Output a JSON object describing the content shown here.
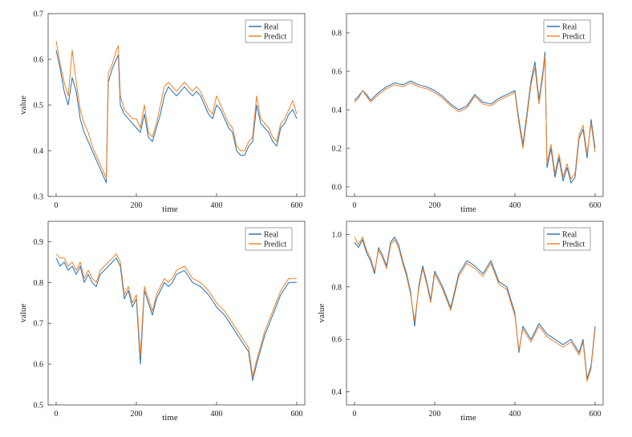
{
  "chart_data": [
    {
      "type": "line",
      "title": "",
      "xlabel": "time",
      "ylabel": "value",
      "xlim": [
        -20,
        620
      ],
      "ylim": [
        0.3,
        0.7
      ],
      "xticks": [
        0,
        200,
        400,
        600
      ],
      "yticks": [
        0.3,
        0.4,
        0.5,
        0.6,
        0.7
      ],
      "ytick_labels": [
        "0.3",
        "0.4",
        "0.5",
        "0.6",
        "0.7"
      ],
      "grid": false,
      "legend": "top-right",
      "series": [
        {
          "name": "Real",
          "color": "#1f6fb2",
          "x": [
            0,
            10,
            20,
            30,
            40,
            50,
            60,
            70,
            80,
            90,
            100,
            110,
            120,
            125,
            130,
            140,
            150,
            155,
            160,
            170,
            180,
            190,
            200,
            210,
            220,
            230,
            240,
            250,
            260,
            270,
            280,
            290,
            300,
            310,
            320,
            330,
            340,
            350,
            360,
            370,
            380,
            390,
            400,
            410,
            420,
            430,
            440,
            450,
            460,
            470,
            480,
            490,
            500,
            510,
            520,
            530,
            540,
            550,
            560,
            570,
            580,
            590,
            600
          ],
          "values": [
            0.62,
            0.58,
            0.53,
            0.5,
            0.56,
            0.53,
            0.47,
            0.44,
            0.42,
            0.4,
            0.38,
            0.36,
            0.34,
            0.33,
            0.55,
            0.58,
            0.6,
            0.61,
            0.5,
            0.48,
            0.47,
            0.46,
            0.45,
            0.44,
            0.48,
            0.43,
            0.42,
            0.45,
            0.48,
            0.52,
            0.54,
            0.53,
            0.52,
            0.53,
            0.54,
            0.53,
            0.52,
            0.53,
            0.52,
            0.5,
            0.48,
            0.47,
            0.5,
            0.49,
            0.47,
            0.45,
            0.44,
            0.4,
            0.39,
            0.39,
            0.41,
            0.42,
            0.5,
            0.46,
            0.45,
            0.44,
            0.42,
            0.41,
            0.45,
            0.46,
            0.48,
            0.49,
            0.47
          ]
        },
        {
          "name": "Predict",
          "color": "#f07f22",
          "x": [
            0,
            10,
            20,
            30,
            40,
            50,
            60,
            70,
            80,
            90,
            100,
            110,
            120,
            125,
            130,
            140,
            150,
            155,
            160,
            170,
            180,
            190,
            200,
            210,
            220,
            230,
            240,
            250,
            260,
            270,
            280,
            290,
            300,
            310,
            320,
            330,
            340,
            350,
            360,
            370,
            380,
            390,
            400,
            410,
            420,
            430,
            440,
            450,
            460,
            470,
            480,
            490,
            500,
            510,
            520,
            530,
            540,
            550,
            560,
            570,
            580,
            590,
            600
          ],
          "values": [
            0.64,
            0.59,
            0.55,
            0.52,
            0.62,
            0.55,
            0.49,
            0.46,
            0.44,
            0.41,
            0.39,
            0.37,
            0.35,
            0.34,
            0.57,
            0.59,
            0.62,
            0.63,
            0.52,
            0.49,
            0.48,
            0.47,
            0.47,
            0.45,
            0.5,
            0.44,
            0.43,
            0.46,
            0.5,
            0.54,
            0.55,
            0.54,
            0.53,
            0.54,
            0.55,
            0.54,
            0.53,
            0.54,
            0.53,
            0.51,
            0.49,
            0.48,
            0.52,
            0.5,
            0.48,
            0.46,
            0.45,
            0.41,
            0.4,
            0.4,
            0.42,
            0.43,
            0.52,
            0.47,
            0.46,
            0.45,
            0.43,
            0.42,
            0.46,
            0.47,
            0.49,
            0.51,
            0.48
          ]
        }
      ]
    },
    {
      "type": "line",
      "title": "",
      "xlabel": "time",
      "ylabel": "",
      "xlim": [
        -20,
        620
      ],
      "ylim": [
        -0.05,
        0.9
      ],
      "xticks": [
        0,
        200,
        400,
        600
      ],
      "yticks": [
        0,
        0.2,
        0.4,
        0.6,
        0.8
      ],
      "ytick_labels": [
        "0.0",
        "0.2",
        "0.4",
        "0.6",
        "0.8"
      ],
      "grid": false,
      "legend": "top-right",
      "series": [
        {
          "name": "Real",
          "color": "#1f6fb2",
          "x": [
            0,
            10,
            20,
            30,
            40,
            50,
            60,
            80,
            100,
            120,
            140,
            160,
            180,
            200,
            220,
            240,
            260,
            280,
            300,
            320,
            340,
            360,
            380,
            400,
            410,
            420,
            430,
            440,
            450,
            460,
            470,
            475,
            480,
            490,
            500,
            510,
            520,
            530,
            540,
            550,
            560,
            570,
            580,
            590,
            600
          ],
          "values": [
            0.45,
            0.47,
            0.5,
            0.48,
            0.45,
            0.47,
            0.49,
            0.52,
            0.54,
            0.53,
            0.55,
            0.53,
            0.52,
            0.5,
            0.47,
            0.43,
            0.4,
            0.42,
            0.48,
            0.44,
            0.43,
            0.46,
            0.48,
            0.5,
            0.35,
            0.22,
            0.38,
            0.55,
            0.65,
            0.45,
            0.6,
            0.7,
            0.1,
            0.2,
            0.05,
            0.15,
            0.03,
            0.1,
            0.02,
            0.05,
            0.25,
            0.3,
            0.15,
            0.35,
            0.2
          ]
        },
        {
          "name": "Predict",
          "color": "#f07f22",
          "x": [
            0,
            10,
            20,
            30,
            40,
            50,
            60,
            80,
            100,
            120,
            140,
            160,
            180,
            200,
            220,
            240,
            260,
            280,
            300,
            320,
            340,
            360,
            380,
            400,
            410,
            420,
            430,
            440,
            450,
            460,
            470,
            475,
            480,
            490,
            500,
            510,
            520,
            530,
            540,
            550,
            560,
            570,
            580,
            590,
            600
          ],
          "values": [
            0.44,
            0.46,
            0.5,
            0.47,
            0.44,
            0.46,
            0.48,
            0.51,
            0.53,
            0.52,
            0.54,
            0.52,
            0.51,
            0.49,
            0.46,
            0.42,
            0.39,
            0.41,
            0.47,
            0.43,
            0.42,
            0.45,
            0.47,
            0.49,
            0.33,
            0.2,
            0.36,
            0.53,
            0.62,
            0.43,
            0.58,
            0.68,
            0.12,
            0.22,
            0.07,
            0.17,
            0.05,
            0.12,
            0.04,
            0.07,
            0.27,
            0.32,
            0.17,
            0.33,
            0.18
          ]
        }
      ]
    },
    {
      "type": "line",
      "title": "",
      "xlabel": "time",
      "ylabel": "value",
      "xlim": [
        -20,
        620
      ],
      "ylim": [
        0.5,
        0.95
      ],
      "xticks": [
        0,
        200,
        400,
        600
      ],
      "yticks": [
        0.5,
        0.6,
        0.7,
        0.8,
        0.9
      ],
      "ytick_labels": [
        "0.5",
        "0.6",
        "0.7",
        "0.8",
        "0.9"
      ],
      "grid": false,
      "legend": "top-right",
      "series": [
        {
          "name": "Real",
          "color": "#1f6fb2",
          "x": [
            0,
            10,
            20,
            30,
            40,
            50,
            60,
            70,
            80,
            90,
            100,
            110,
            120,
            130,
            140,
            150,
            160,
            170,
            180,
            190,
            200,
            210,
            220,
            230,
            240,
            250,
            260,
            270,
            280,
            290,
            300,
            320,
            340,
            360,
            380,
            400,
            420,
            440,
            460,
            480,
            490,
            500,
            520,
            540,
            560,
            580,
            600
          ],
          "values": [
            0.86,
            0.84,
            0.85,
            0.83,
            0.84,
            0.82,
            0.84,
            0.8,
            0.82,
            0.8,
            0.79,
            0.82,
            0.83,
            0.84,
            0.85,
            0.86,
            0.84,
            0.76,
            0.78,
            0.74,
            0.76,
            0.6,
            0.78,
            0.75,
            0.72,
            0.76,
            0.78,
            0.8,
            0.79,
            0.8,
            0.82,
            0.83,
            0.8,
            0.79,
            0.77,
            0.74,
            0.72,
            0.69,
            0.66,
            0.63,
            0.56,
            0.6,
            0.67,
            0.72,
            0.77,
            0.8,
            0.8
          ]
        },
        {
          "name": "Predict",
          "color": "#f07f22",
          "x": [
            0,
            10,
            20,
            30,
            40,
            50,
            60,
            70,
            80,
            90,
            100,
            110,
            120,
            130,
            140,
            150,
            160,
            170,
            180,
            190,
            200,
            210,
            220,
            230,
            240,
            250,
            260,
            270,
            280,
            290,
            300,
            320,
            340,
            360,
            380,
            400,
            420,
            440,
            460,
            480,
            490,
            500,
            520,
            540,
            560,
            580,
            600
          ],
          "values": [
            0.87,
            0.86,
            0.86,
            0.84,
            0.85,
            0.83,
            0.85,
            0.81,
            0.83,
            0.81,
            0.8,
            0.83,
            0.84,
            0.85,
            0.86,
            0.87,
            0.85,
            0.77,
            0.79,
            0.75,
            0.77,
            0.62,
            0.79,
            0.76,
            0.73,
            0.77,
            0.79,
            0.81,
            0.8,
            0.81,
            0.83,
            0.84,
            0.81,
            0.8,
            0.78,
            0.75,
            0.73,
            0.7,
            0.67,
            0.64,
            0.57,
            0.61,
            0.68,
            0.73,
            0.78,
            0.81,
            0.81
          ]
        }
      ]
    },
    {
      "type": "line",
      "title": "",
      "xlabel": "time",
      "ylabel": "value",
      "xlim": [
        -20,
        620
      ],
      "ylim": [
        0.35,
        1.05
      ],
      "xticks": [
        0,
        200,
        400,
        600
      ],
      "yticks": [
        0.4,
        0.6,
        0.8,
        1.0
      ],
      "ytick_labels": [
        "0.4",
        "0.6",
        "0.8",
        "1.0"
      ],
      "grid": false,
      "legend": "top-right",
      "series": [
        {
          "name": "Real",
          "color": "#1f6fb2",
          "x": [
            0,
            10,
            20,
            30,
            40,
            50,
            60,
            70,
            80,
            90,
            100,
            110,
            120,
            130,
            140,
            150,
            160,
            170,
            180,
            190,
            200,
            220,
            240,
            260,
            280,
            300,
            320,
            340,
            360,
            380,
            400,
            410,
            420,
            440,
            460,
            480,
            500,
            520,
            540,
            560,
            570,
            580,
            590,
            600
          ],
          "values": [
            0.97,
            0.95,
            0.98,
            0.93,
            0.9,
            0.85,
            0.95,
            0.92,
            0.88,
            0.97,
            0.99,
            0.96,
            0.9,
            0.85,
            0.78,
            0.65,
            0.8,
            0.88,
            0.82,
            0.75,
            0.86,
            0.8,
            0.72,
            0.85,
            0.9,
            0.88,
            0.85,
            0.9,
            0.82,
            0.8,
            0.7,
            0.55,
            0.65,
            0.6,
            0.66,
            0.62,
            0.6,
            0.58,
            0.6,
            0.55,
            0.6,
            0.45,
            0.5,
            0.65
          ]
        },
        {
          "name": "Predict",
          "color": "#f07f22",
          "x": [
            0,
            10,
            20,
            30,
            40,
            50,
            60,
            70,
            80,
            90,
            100,
            110,
            120,
            130,
            140,
            150,
            160,
            170,
            180,
            190,
            200,
            220,
            240,
            260,
            280,
            300,
            320,
            340,
            360,
            380,
            400,
            410,
            420,
            440,
            460,
            480,
            500,
            520,
            540,
            560,
            570,
            580,
            590,
            600
          ],
          "values": [
            0.99,
            0.96,
            0.99,
            0.94,
            0.91,
            0.86,
            0.94,
            0.91,
            0.87,
            0.96,
            0.98,
            0.95,
            0.89,
            0.84,
            0.77,
            0.67,
            0.79,
            0.87,
            0.81,
            0.74,
            0.85,
            0.79,
            0.71,
            0.84,
            0.89,
            0.87,
            0.84,
            0.89,
            0.81,
            0.79,
            0.69,
            0.56,
            0.64,
            0.59,
            0.65,
            0.61,
            0.59,
            0.57,
            0.59,
            0.54,
            0.59,
            0.44,
            0.49,
            0.64
          ]
        }
      ]
    }
  ]
}
